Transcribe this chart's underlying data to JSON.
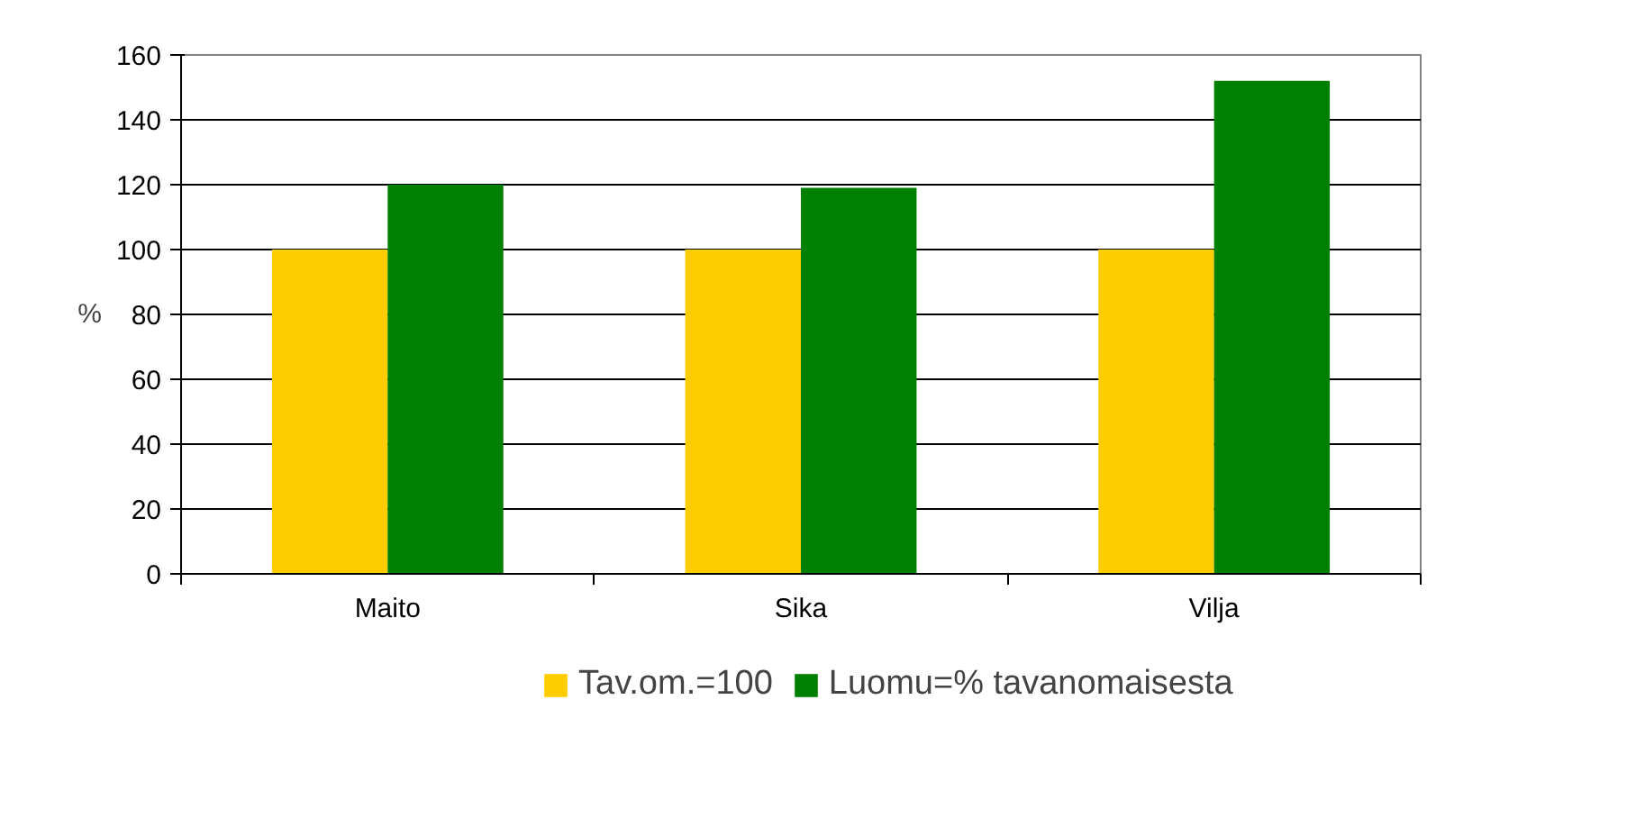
{
  "chart_data": {
    "type": "bar",
    "ylabel": "%",
    "categories": [
      "Maito",
      "Sika",
      "Vilja"
    ],
    "series": [
      {
        "name": "Tav.om.=100",
        "color": "#ffcc00",
        "values": [
          100,
          100,
          100
        ]
      },
      {
        "name": "Luomu=% tavanomaisesta",
        "color": "#008000",
        "values": [
          120,
          119,
          152
        ]
      }
    ],
    "ylim": [
      0,
      160
    ],
    "yticks": [
      0,
      20,
      40,
      60,
      80,
      100,
      120,
      140,
      160
    ],
    "grid": "y",
    "legend": "bottom"
  }
}
